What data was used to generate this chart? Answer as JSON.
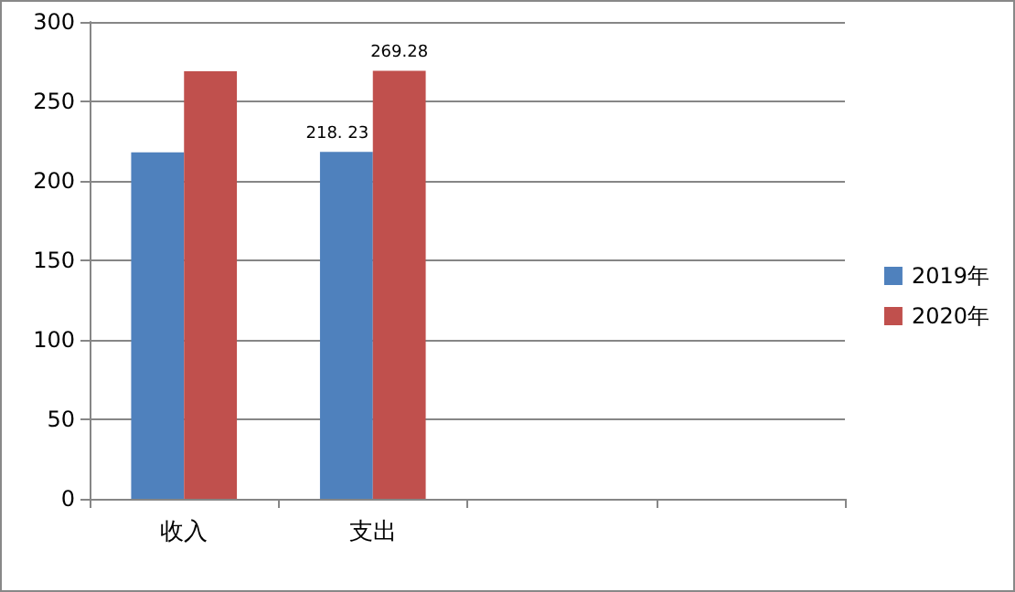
{
  "chart_data": {
    "type": "bar",
    "categories": [
      "收入",
      "支出",
      null,
      null
    ],
    "series": [
      {
        "name": "2019年",
        "color": "#4f81bd",
        "values": [
          218,
          218.23,
          null,
          null
        ],
        "value_labels": [
          null,
          "218. 23",
          null,
          null
        ]
      },
      {
        "name": "2020年",
        "color": "#c0504d",
        "values": [
          269,
          269.28,
          null,
          null
        ],
        "value_labels": [
          null,
          "269.28",
          null,
          null
        ]
      }
    ],
    "ylim": [
      0,
      300
    ],
    "yticks": [
      0,
      50,
      100,
      150,
      200,
      250,
      300
    ],
    "grid": "y",
    "legend": "right"
  }
}
